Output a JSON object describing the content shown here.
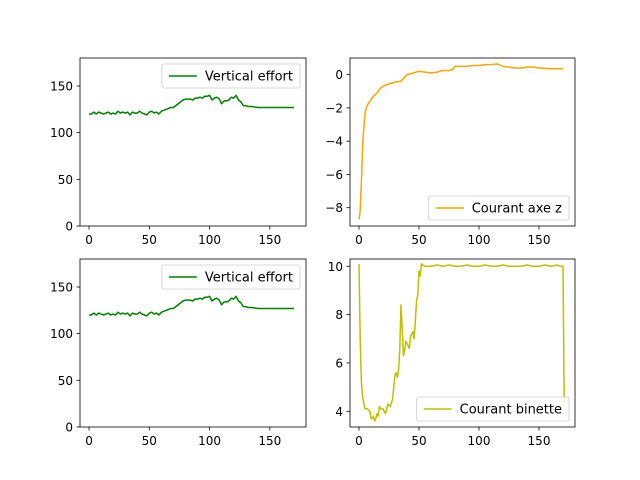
{
  "chart_data": [
    {
      "type": "line",
      "position": "top-left",
      "xlim": [
        -7.5,
        180
      ],
      "ylim": [
        0,
        180
      ],
      "xticks": [
        0,
        50,
        100,
        150
      ],
      "yticks": [
        0,
        50,
        100,
        150
      ],
      "legend": "top-right",
      "series": [
        {
          "name": "Vertical effort",
          "color": "#008000",
          "x": [
            0,
            2,
            4,
            6,
            8,
            10,
            12,
            14,
            16,
            18,
            20,
            22,
            24,
            26,
            28,
            30,
            32,
            34,
            36,
            38,
            40,
            42,
            44,
            46,
            48,
            50,
            52,
            54,
            56,
            58,
            60,
            62,
            64,
            66,
            68,
            70,
            72,
            74,
            76,
            78,
            80,
            82,
            84,
            86,
            88,
            90,
            92,
            94,
            96,
            98,
            100,
            102,
            104,
            106,
            108,
            110,
            112,
            114,
            116,
            118,
            120,
            122,
            124,
            126,
            128,
            130,
            132,
            135,
            140,
            145,
            150,
            155,
            160,
            165,
            170
          ],
          "y": [
            120,
            120,
            122,
            120,
            122,
            121,
            120,
            121,
            122,
            120,
            121,
            120,
            123,
            121,
            122,
            121,
            122,
            119,
            122,
            121,
            121,
            123,
            121,
            120,
            119,
            122,
            123,
            121,
            122,
            120,
            123,
            124,
            125,
            126,
            127,
            127,
            129,
            131,
            133,
            135,
            136,
            136,
            136,
            135,
            137,
            137,
            138,
            137,
            139,
            139,
            140,
            135,
            137,
            138,
            136,
            131,
            134,
            134,
            135,
            138,
            137,
            140,
            135,
            133,
            129,
            129,
            128,
            128,
            127,
            127,
            127,
            127,
            127,
            127,
            127
          ]
        }
      ]
    },
    {
      "type": "line",
      "position": "top-right",
      "xlim": [
        -7.5,
        180
      ],
      "ylim": [
        -9.1,
        1.0
      ],
      "xticks": [
        0,
        50,
        100,
        150
      ],
      "yticks": [
        -8,
        -6,
        -4,
        -2,
        0
      ],
      "legend": "bottom-right",
      "series": [
        {
          "name": "Courant axe z",
          "color": "#FFA500",
          "x": [
            0,
            1,
            2,
            3,
            4,
            5,
            6,
            8,
            10,
            12,
            15,
            18,
            20,
            25,
            30,
            35,
            40,
            45,
            50,
            55,
            60,
            65,
            70,
            75,
            78,
            80,
            85,
            90,
            95,
            100,
            105,
            110,
            115,
            120,
            125,
            130,
            135,
            140,
            145,
            150,
            160,
            170
          ],
          "y": [
            -8.7,
            -8.2,
            -6.5,
            -4.3,
            -3.2,
            -2.4,
            -2.0,
            -1.7,
            -1.5,
            -1.3,
            -1.1,
            -0.8,
            -0.7,
            -0.55,
            -0.45,
            -0.4,
            0.0,
            0.1,
            0.2,
            0.15,
            0.1,
            0.15,
            0.25,
            0.25,
            0.3,
            0.5,
            0.5,
            0.5,
            0.55,
            0.55,
            0.6,
            0.6,
            0.65,
            0.5,
            0.45,
            0.4,
            0.4,
            0.45,
            0.45,
            0.4,
            0.35,
            0.35
          ]
        }
      ]
    },
    {
      "type": "line",
      "position": "bottom-left",
      "xlim": [
        -7.5,
        180
      ],
      "ylim": [
        0,
        180
      ],
      "xticks": [
        0,
        50,
        100,
        150
      ],
      "yticks": [
        0,
        50,
        100,
        150
      ],
      "legend": "top-right",
      "series": [
        {
          "name": "Vertical effort",
          "color": "#008000",
          "x": [
            0,
            2,
            4,
            6,
            8,
            10,
            12,
            14,
            16,
            18,
            20,
            22,
            24,
            26,
            28,
            30,
            32,
            34,
            36,
            38,
            40,
            42,
            44,
            46,
            48,
            50,
            52,
            54,
            56,
            58,
            60,
            62,
            64,
            66,
            68,
            70,
            72,
            74,
            76,
            78,
            80,
            82,
            84,
            86,
            88,
            90,
            92,
            94,
            96,
            98,
            100,
            102,
            104,
            106,
            108,
            110,
            112,
            114,
            116,
            118,
            120,
            122,
            124,
            126,
            128,
            130,
            132,
            135,
            140,
            145,
            150,
            155,
            160,
            165,
            170
          ],
          "y": [
            120,
            120,
            122,
            120,
            122,
            121,
            120,
            121,
            122,
            120,
            121,
            120,
            123,
            121,
            122,
            121,
            122,
            119,
            122,
            121,
            121,
            123,
            121,
            120,
            119,
            122,
            123,
            121,
            122,
            120,
            123,
            124,
            125,
            126,
            127,
            127,
            129,
            131,
            133,
            135,
            136,
            136,
            136,
            135,
            137,
            137,
            138,
            137,
            139,
            139,
            140,
            135,
            137,
            138,
            136,
            131,
            134,
            134,
            135,
            138,
            137,
            140,
            135,
            133,
            129,
            129,
            128,
            128,
            127,
            127,
            127,
            127,
            127,
            127,
            127
          ]
        }
      ]
    },
    {
      "type": "line",
      "position": "bottom-right",
      "xlim": [
        -7.5,
        180
      ],
      "ylim": [
        3.35,
        10.3
      ],
      "xticks": [
        0,
        50,
        100,
        150
      ],
      "yticks": [
        4,
        6,
        8,
        10
      ],
      "legend": "bottom-right",
      "series": [
        {
          "name": "Courant binette",
          "color": "#BFBF00",
          "x": [
            0,
            1,
            2,
            3,
            5,
            7,
            9,
            10,
            11,
            12,
            13,
            14,
            15,
            16,
            17,
            18,
            20,
            22,
            24,
            26,
            28,
            30,
            31,
            32,
            33,
            34,
            35,
            36,
            37,
            38,
            39,
            40,
            41,
            42,
            43,
            44,
            45,
            46,
            47,
            48,
            49,
            50,
            51,
            52,
            53,
            55,
            60,
            65,
            70,
            75,
            80,
            85,
            90,
            95,
            100,
            105,
            110,
            115,
            120,
            125,
            130,
            135,
            140,
            145,
            150,
            155,
            160,
            165,
            168,
            170,
            171
          ],
          "y": [
            10.1,
            7.0,
            5.2,
            4.6,
            4.1,
            4.1,
            4.0,
            3.7,
            3.7,
            3.8,
            3.6,
            3.7,
            3.9,
            3.8,
            4.2,
            4.1,
            4.1,
            3.9,
            4.3,
            4.2,
            4.5,
            5.5,
            5.6,
            5.4,
            5.7,
            6.6,
            8.4,
            7.4,
            6.3,
            6.5,
            6.9,
            6.8,
            6.7,
            6.6,
            7.1,
            7.2,
            7.3,
            7.0,
            7.8,
            8.6,
            8.8,
            9.8,
            9.6,
            10.1,
            10.05,
            10.0,
            10.0,
            10.05,
            10.0,
            10.05,
            10.0,
            10.0,
            10.05,
            10.0,
            10.0,
            10.05,
            10.0,
            10.0,
            10.05,
            10.0,
            10.0,
            10.0,
            10.05,
            10.0,
            10.0,
            10.05,
            10.0,
            10.05,
            10.0,
            10.0,
            4.3
          ]
        }
      ]
    }
  ]
}
